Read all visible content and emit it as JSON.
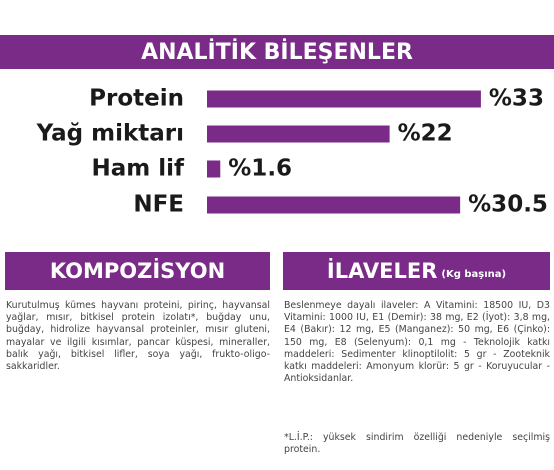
{
  "chart_data": {
    "type": "bar",
    "orientation": "horizontal",
    "title": "ANALİTİK BİLEŞENLER",
    "categories": [
      "Protein",
      "Yağ miktarı",
      "Ham lif",
      "NFE"
    ],
    "values": [
      33,
      22,
      1.6,
      30.5
    ],
    "value_labels": [
      "%33",
      "%22",
      "%1.6",
      "%30.5"
    ],
    "color": "#7a2a87"
  },
  "composition": {
    "title": "KOMPOZİSYON",
    "text": "Kurutulmuş kümes hayvanı proteini, pirinç, hayvansal yağlar, mısır, bitkisel protein izolatı*, buğday unu, buğday, hidrolize hayvansal proteinler, mısır gluteni, mayalar ve ilgili kısımlar, pancar küspesi, mineraller, balık yağı, bitkisel lifler, soya yağı, frukto-oligo-sakkaridler."
  },
  "additives": {
    "title": "İLAVELER",
    "subtitle": "(Kg başına)",
    "text": "Beslenmeye dayalı ilaveler: A Vitamini: 18500 IU, D3 Vitamini: 1000 IU, E1 (Demir): 38 mg, E2 (İyot): 3,8 mg, E4 (Bakır): 12 mg, E5 (Manganez): 50 mg, E6 (Çinko): 150 mg, E8 (Selenyum): 0,1 mg - Teknolojik katkı maddeleri: Sedimenter klinoptilolit: 5 gr - Zooteknik katkı maddeleri: Amonyum klorür: 5 gr - Koruyucular - Antioksidanlar.",
    "footnote": "*L.İ.P.: yüksek sindirim özelliği nedeniyle seçilmiş protein."
  }
}
